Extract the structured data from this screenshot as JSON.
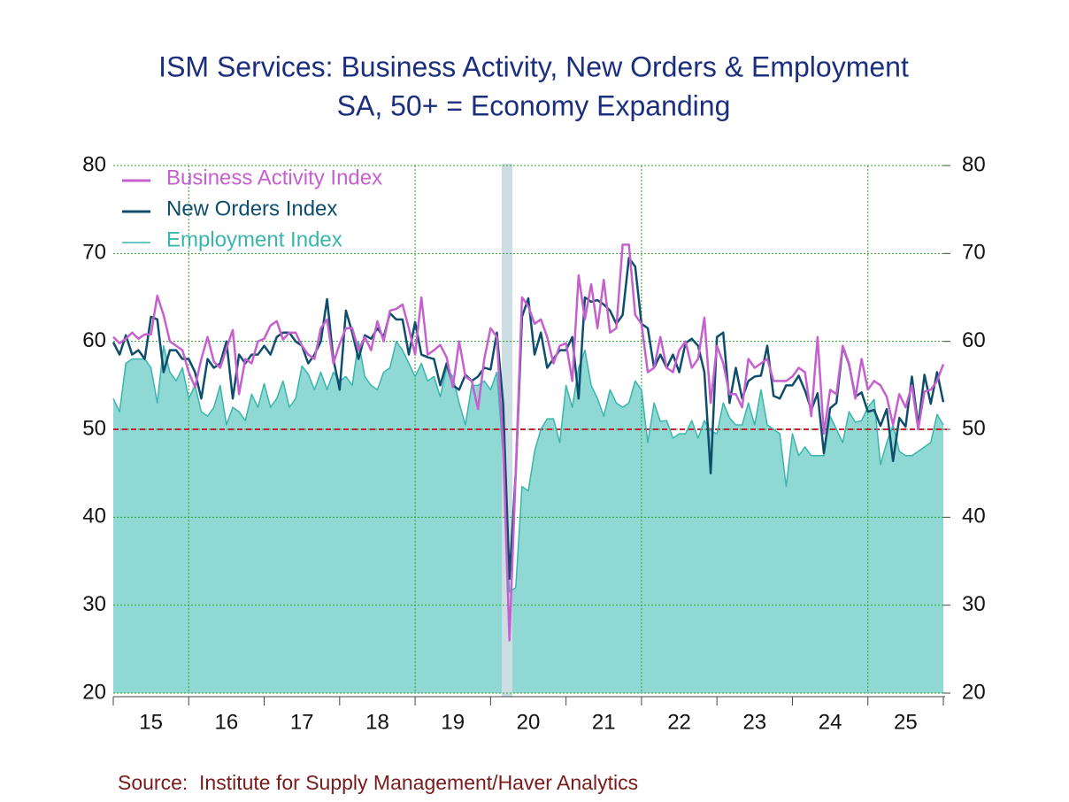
{
  "chart_data": {
    "type": "line",
    "title": "ISM Services: Business Activity, New Orders & Employment",
    "subtitle": "SA, 50+ = Economy Expanding",
    "source": "Source:  Institute for Supply Management/Haver Analytics",
    "categories": [
      null,
      null,
      null,
      null,
      null,
      null,
      "15",
      null,
      null,
      null,
      null,
      null,
      null,
      null,
      null,
      null,
      null,
      null,
      "16",
      null,
      null,
      null,
      null,
      null,
      null,
      null,
      null,
      null,
      null,
      null,
      "17",
      null,
      null,
      null,
      null,
      null,
      null,
      null,
      null,
      null,
      null,
      null,
      "18",
      null,
      null,
      null,
      null,
      null,
      null,
      null,
      null,
      null,
      null,
      null,
      "19",
      null,
      null,
      null,
      null,
      null,
      null,
      null,
      null,
      null,
      null,
      null,
      "20",
      null,
      null,
      null,
      null,
      null,
      null,
      null,
      null,
      null,
      null,
      null,
      "21",
      null,
      null,
      null,
      null,
      null,
      null,
      null,
      null,
      null,
      null,
      null,
      "22",
      null,
      null,
      null,
      null,
      null,
      null,
      null,
      null,
      null,
      null,
      null,
      "23",
      null,
      null,
      null,
      null,
      null,
      null,
      null,
      null,
      null,
      null,
      null,
      "24",
      null,
      null,
      null,
      null,
      null,
      null,
      null,
      null,
      null,
      null,
      null,
      "25",
      null,
      null,
      null,
      null,
      null,
      null
    ],
    "series": [
      {
        "name": "Business Activity Index",
        "color": "#c660cf",
        "style": "line",
        "values": [
          60.5,
          59.8,
          60.3,
          61,
          60.3,
          60.8,
          60.8,
          65.2,
          63,
          60,
          59.5,
          59,
          56.5,
          54.8,
          58,
          60.5,
          57.7,
          57,
          59.2,
          61.3,
          54,
          58,
          57.5,
          60,
          60.3,
          61.8,
          62.3,
          60.2,
          61,
          61,
          59.5,
          58.5,
          58,
          61.5,
          62.5,
          57.5,
          59.7,
          61.5,
          61.5,
          59,
          60.5,
          59,
          62.3,
          60,
          63.5,
          63.7,
          64.2,
          61.5,
          58.5,
          65,
          58.5,
          59,
          59.6,
          58.2,
          54.8,
          60,
          56,
          55.5,
          52.3,
          58,
          61.5,
          60.5,
          48,
          26,
          45,
          65,
          64,
          62,
          62.5,
          60.5,
          57.5,
          59.5,
          59.8,
          55.5,
          67.5,
          62.5,
          66.5,
          61.5,
          67,
          61,
          61.5,
          71,
          71,
          63,
          62,
          56.5,
          57,
          60.5,
          57,
          56.5,
          59,
          60,
          57,
          58,
          62.7,
          53,
          59.5,
          57.5,
          54,
          54,
          52.5,
          58,
          57,
          57.5,
          58,
          55.5,
          55.5,
          55.5,
          56,
          57,
          56.5,
          51.5,
          60.5,
          49.5,
          54.5,
          54,
          59.5,
          57.5,
          53.5,
          58,
          54.5,
          55.5,
          55,
          53.7,
          50.5,
          54,
          52.5,
          55,
          50,
          54.3,
          54.5,
          55.5,
          57.4
        ]
      },
      {
        "name": "New Orders Index",
        "color": "#0e4d6c",
        "style": "line",
        "values": [
          59.9,
          58.5,
          60.7,
          58.5,
          59,
          58,
          62.8,
          62.5,
          56.5,
          59,
          59,
          58,
          58,
          56.5,
          53.5,
          58,
          57,
          57.5,
          60,
          53.5,
          58.5,
          57.5,
          58.5,
          58.5,
          59.5,
          58.5,
          60.5,
          61,
          61,
          60,
          59.5,
          57.5,
          58.5,
          60,
          64.8,
          58,
          54.5,
          63.5,
          61,
          58,
          60.7,
          60.3,
          61.5,
          60.5,
          63.2,
          62.5,
          62.5,
          58.5,
          62.2,
          58.5,
          58.2,
          58,
          55,
          57.5,
          55,
          54.5,
          56.2,
          55.5,
          56,
          57,
          56.8,
          61,
          52.9,
          33,
          45,
          62.8,
          64.9,
          58.5,
          61,
          57,
          58,
          59,
          59,
          60.5,
          53.5,
          65,
          64.5,
          64.7,
          64.2,
          63.5,
          62,
          63,
          69.5,
          68.5,
          62,
          61.5,
          57,
          58.5,
          57,
          58.5,
          56.5,
          59.8,
          60.3,
          59.5,
          56.5,
          45,
          60.5,
          61,
          53,
          57,
          53.5,
          55.5,
          56,
          56.1,
          59.5,
          53.8,
          53.5,
          55,
          55,
          56.1,
          54.4,
          52.2,
          54.1,
          47.3,
          52.4,
          53,
          59.4,
          57.4,
          53.7,
          54.2,
          52,
          52.2,
          50.4,
          52.3,
          46.4,
          51.3,
          50.3,
          56,
          50.4,
          56.2,
          52.9,
          56.5,
          53.1
        ]
      },
      {
        "name": "Employment Index",
        "color": "#3ab5ad",
        "fill": "#8fd8d3",
        "style": "area",
        "values": [
          53.5,
          52,
          57.5,
          58,
          58,
          58,
          57,
          53,
          59.5,
          56.5,
          55.5,
          57,
          53.5,
          55,
          52,
          51.5,
          52.5,
          55,
          50.5,
          52.5,
          52,
          51,
          54,
          52.5,
          55.2,
          52.5,
          53.5,
          55.5,
          52.5,
          53.5,
          57.2,
          56.3,
          54.5,
          56.5,
          54.5,
          56.5,
          55.5,
          56,
          55,
          60,
          56,
          55,
          54.5,
          56.5,
          57,
          60,
          59,
          57.5,
          56,
          57.5,
          55.5,
          56,
          53.7,
          57,
          56,
          53,
          50.5,
          55,
          55,
          55.5,
          54.5,
          56.5,
          47,
          31.5,
          32,
          43.5,
          43,
          47.5,
          50,
          51.2,
          51.2,
          48.5,
          55,
          52.5,
          57,
          59,
          55,
          53.5,
          51.5,
          54.5,
          53,
          52.5,
          53,
          55.5,
          54.5,
          48.5,
          53,
          50.9,
          51,
          49,
          49.5,
          49.5,
          51,
          49,
          51,
          49.8,
          49.5,
          53,
          51.3,
          50.5,
          50.5,
          53,
          50.5,
          54.5,
          50.5,
          50,
          49.5,
          43.5,
          49.5,
          47,
          48,
          47,
          47,
          47,
          51.5,
          50,
          48.5,
          52,
          50.8,
          51,
          52.5,
          53.4,
          46,
          48.5,
          50.5,
          47.5,
          47,
          47,
          47.5,
          48,
          48.5,
          51.7,
          50.5
        ]
      }
    ],
    "ylim": [
      20,
      80
    ],
    "yticks": [
      20,
      30,
      40,
      50,
      60,
      70,
      80
    ],
    "y2lim": [
      20,
      80
    ],
    "y2ticks": [
      20,
      30,
      40,
      50,
      60,
      70,
      80
    ],
    "reference_line": 50,
    "grid": true,
    "legend": "upper left"
  }
}
